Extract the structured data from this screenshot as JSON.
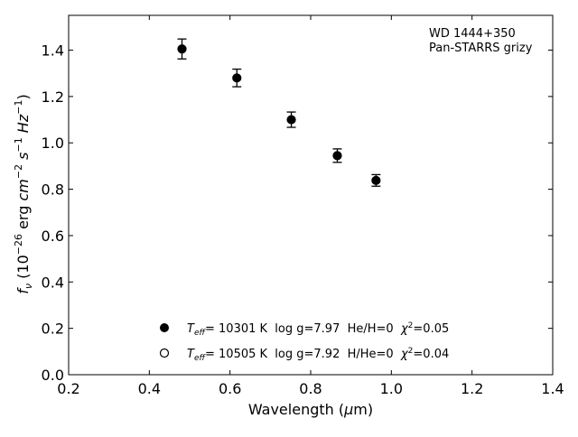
{
  "chart_data": {
    "type": "scatter",
    "annotation_lines": [
      "WD 1444+350",
      "Pan-STARRS grizy"
    ],
    "xlabel": {
      "main": "Wavelength (",
      "mu": "μ",
      "unit": "m)"
    },
    "ylabel": {
      "f": "f",
      "nu": "ν",
      "pre": " (10",
      "exp1": "−26",
      "erg": " erg ",
      "cm": "cm",
      "exp2": "−2",
      "s": " s",
      "exp3": "−1",
      "hz": " Hz",
      "exp4": "−1",
      "post": ")"
    },
    "xlim": [
      0.2,
      1.4
    ],
    "ylim": [
      0.0,
      1.55
    ],
    "xticks": [
      0.2,
      0.4,
      0.6,
      0.8,
      1.0,
      1.2,
      1.4
    ],
    "xtick_labels": [
      "0.2",
      "0.4",
      "0.6",
      "0.8",
      "1.0",
      "1.2",
      "1.4"
    ],
    "yticks": [
      0.0,
      0.2,
      0.4,
      0.6,
      0.8,
      1.0,
      1.2,
      1.4
    ],
    "ytick_labels": [
      "0.0",
      "0.2",
      "0.4",
      "0.6",
      "0.8",
      "1.0",
      "1.2",
      "1.4"
    ],
    "grid": false,
    "legend_position": "lower-center",
    "series": [
      {
        "marker": "filled-circle",
        "color": "#000000",
        "legend": {
          "T": "T",
          "eff": "eff",
          "text": "= 10301 K  log g=7.97  He/H=0  ",
          "chi": "χ",
          "chi_exp": "2",
          "chi_val": "=0.05"
        },
        "points": [
          {
            "x": 0.481,
            "y": 1.405,
            "yerr": 0.043
          },
          {
            "x": 0.617,
            "y": 1.28,
            "yerr": 0.038
          },
          {
            "x": 0.752,
            "y": 1.1,
            "yerr": 0.033
          },
          {
            "x": 0.866,
            "y": 0.945,
            "yerr": 0.029
          },
          {
            "x": 0.962,
            "y": 0.838,
            "yerr": 0.025
          }
        ]
      },
      {
        "marker": "open-circle",
        "color": "#000000",
        "legend": {
          "T": "T",
          "eff": "eff",
          "text": "= 10505 K  log g=7.92  H/He=0  ",
          "chi": "χ",
          "chi_exp": "2",
          "chi_val": "=0.04"
        },
        "points": []
      }
    ]
  }
}
